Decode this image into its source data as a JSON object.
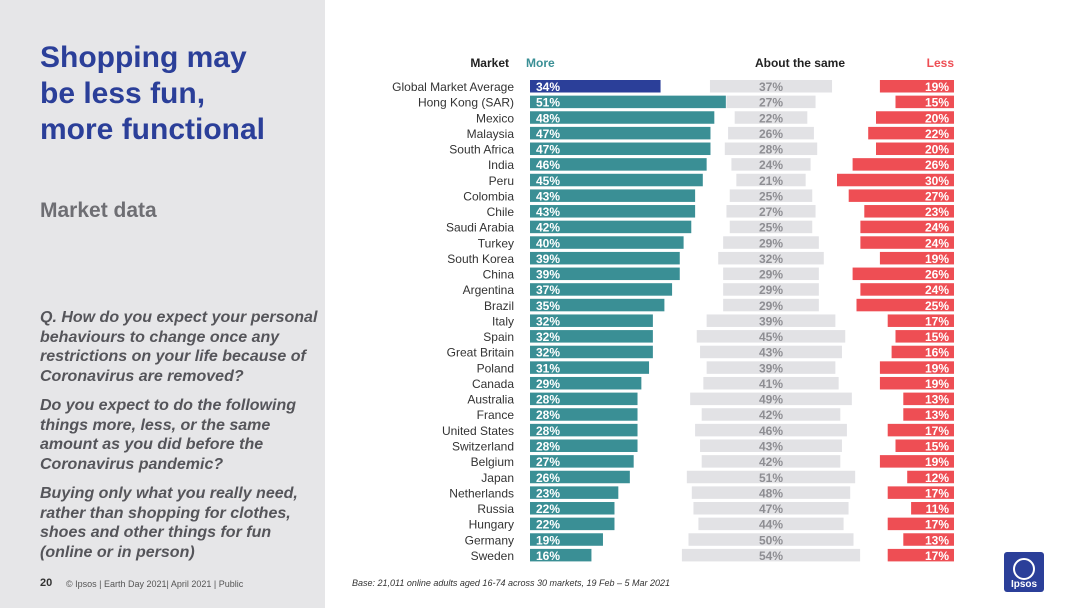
{
  "slide": {
    "title_lines": [
      "Shopping may",
      "be less fun,",
      "more functional"
    ],
    "section_label": "Market data",
    "question_paragraphs": [
      "Q. How do you expect your personal behaviours to change once any restrictions on your life because of Coronavirus are removed?",
      "Do you expect to do the following things more, less, or the same amount as you did before the Coronavirus pandemic?",
      "Buying only what you really need, rather than shopping for clothes, shoes and other things for fun (online or in person)"
    ],
    "page_number": "20",
    "footer_meta": "© Ipsos | Earth Day 2021| April 2021 | Public",
    "footnote": "Base: 21,011 online adults aged 16-74 across 30 markets,  19 Feb – 5 Mar 2021",
    "logo_text": "Ipsos"
  },
  "colors": {
    "more": "#3a8f95",
    "more_highlight": "#2b3f99",
    "same": "#e2e2e5",
    "same_text": "#8e8e93",
    "less": "#ee4e54",
    "header_more": "#3a8f95",
    "header_less": "#ee4e54",
    "header_market": "#222222",
    "accent": "#2b3f99",
    "logo": "#2b3f99"
  },
  "chart_data": {
    "type": "bar",
    "orientation": "horizontal",
    "stacked": "diverging",
    "unit": "%",
    "column_headers": {
      "market": "Market",
      "more": "More",
      "same": "About the same",
      "less": "Less"
    },
    "highlight_category": "Global Market Average",
    "categories": [
      "Global Market Average",
      "Hong Kong (SAR)",
      "Mexico",
      "Malaysia",
      "South Africa",
      "India",
      "Peru",
      "Colombia",
      "Chile",
      "Saudi Arabia",
      "Turkey",
      "South Korea",
      "China",
      "Argentina",
      "Brazil",
      "Italy",
      "Spain",
      "Great Britain",
      "Poland",
      "Canada",
      "Australia",
      "France",
      "United States",
      "Switzerland",
      "Belgium",
      "Japan",
      "Netherlands",
      "Russia",
      "Hungary",
      "Germany",
      "Sweden"
    ],
    "series": [
      {
        "name": "More",
        "values": [
          34,
          51,
          48,
          47,
          47,
          46,
          45,
          43,
          43,
          42,
          40,
          39,
          39,
          37,
          35,
          32,
          32,
          32,
          31,
          29,
          28,
          28,
          28,
          28,
          27,
          26,
          23,
          22,
          22,
          19,
          16
        ]
      },
      {
        "name": "About the same",
        "values": [
          37,
          27,
          22,
          26,
          28,
          24,
          21,
          25,
          27,
          25,
          29,
          32,
          29,
          29,
          29,
          39,
          45,
          43,
          39,
          41,
          49,
          42,
          46,
          43,
          42,
          51,
          48,
          47,
          44,
          50,
          54
        ]
      },
      {
        "name": "Less",
        "values": [
          19,
          15,
          20,
          22,
          20,
          26,
          30,
          27,
          23,
          24,
          24,
          19,
          26,
          24,
          25,
          17,
          15,
          16,
          19,
          19,
          13,
          13,
          17,
          15,
          19,
          12,
          17,
          11,
          17,
          13,
          17
        ]
      }
    ]
  }
}
